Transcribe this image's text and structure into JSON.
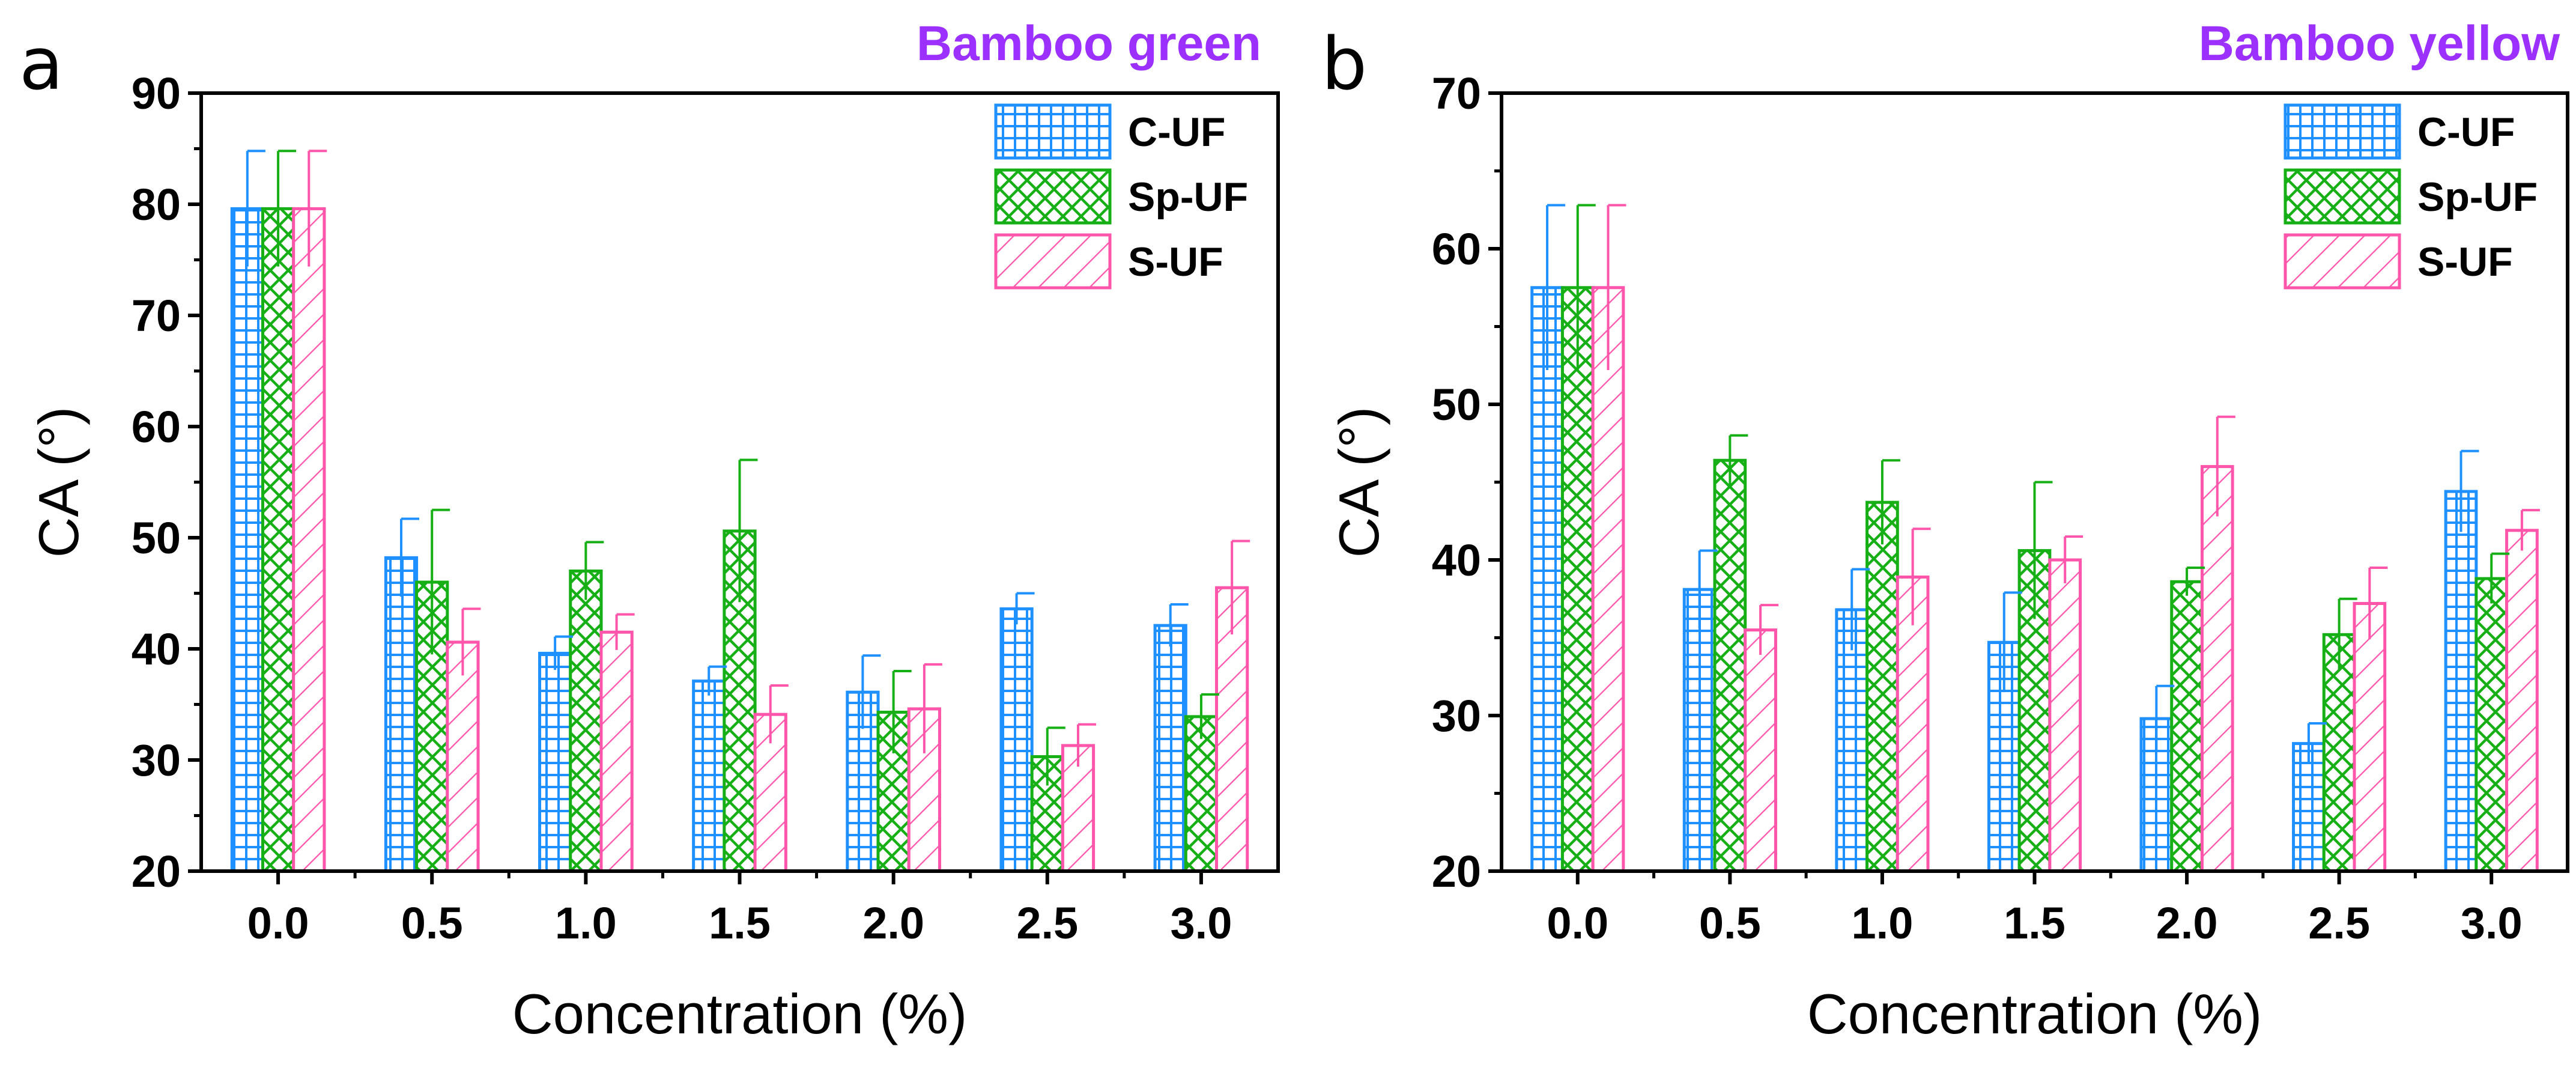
{
  "colors": {
    "C-UF": "#1e90ff",
    "Sp-UF": "#16b016",
    "S-UF": "#ff55aa",
    "title": "#9b30ff",
    "axis": "#000000"
  },
  "chart_data": [
    {
      "panel_label": "a",
      "type": "bar",
      "title": "Bamboo green",
      "xlabel": "Concentration (%)",
      "ylabel": "CA (°)",
      "ylim": [
        20,
        90
      ],
      "yticks": [
        "20",
        "30",
        "40",
        "50",
        "60",
        "70",
        "80",
        "90"
      ],
      "categories": [
        "0.0",
        "0.5",
        "1.0",
        "1.5",
        "2.0",
        "2.5",
        "3.0"
      ],
      "legend_position": "top-right",
      "series": [
        {
          "name": "C-UF",
          "pattern": "grid",
          "values": [
            79.6,
            48.2,
            39.6,
            37.1,
            36.1,
            43.6,
            42.1
          ],
          "errors": [
            5.2,
            3.5,
            1.5,
            1.3,
            3.3,
            1.4,
            1.9
          ]
        },
        {
          "name": "Sp-UF",
          "pattern": "crosshatch",
          "values": [
            79.6,
            46.0,
            47.0,
            50.6,
            34.3,
            30.3,
            33.9
          ],
          "errors": [
            5.2,
            6.5,
            2.6,
            6.4,
            3.7,
            2.6,
            2.0
          ]
        },
        {
          "name": "S-UF",
          "pattern": "diagonal",
          "values": [
            79.6,
            40.6,
            41.5,
            34.1,
            34.6,
            31.3,
            45.5
          ],
          "errors": [
            5.2,
            3.0,
            1.6,
            2.6,
            4.0,
            1.9,
            4.2
          ]
        }
      ]
    },
    {
      "panel_label": "b",
      "type": "bar",
      "title": "Bamboo yellow",
      "xlabel": "Concentration (%)",
      "ylabel": "CA (°)",
      "ylim": [
        20,
        70
      ],
      "yticks": [
        "20",
        "30",
        "40",
        "50",
        "60",
        "70"
      ],
      "categories": [
        "0.0",
        "0.5",
        "1.0",
        "1.5",
        "2.0",
        "2.5",
        "3.0"
      ],
      "legend_position": "top-right",
      "series": [
        {
          "name": "C-UF",
          "pattern": "grid",
          "values": [
            57.5,
            38.1,
            36.8,
            34.7,
            29.8,
            28.2,
            44.4
          ],
          "errors": [
            5.3,
            2.5,
            2.6,
            3.2,
            2.1,
            1.3,
            2.6
          ]
        },
        {
          "name": "Sp-UF",
          "pattern": "crosshatch",
          "values": [
            57.5,
            46.4,
            43.7,
            40.6,
            38.6,
            35.2,
            38.8
          ],
          "errors": [
            5.3,
            1.6,
            2.7,
            4.4,
            0.9,
            2.3,
            1.6
          ]
        },
        {
          "name": "S-UF",
          "pattern": "diagonal",
          "values": [
            57.5,
            35.5,
            38.9,
            40.0,
            46.0,
            37.2,
            41.9
          ],
          "errors": [
            5.3,
            1.6,
            3.1,
            1.5,
            3.2,
            2.3,
            1.3
          ]
        }
      ]
    }
  ]
}
